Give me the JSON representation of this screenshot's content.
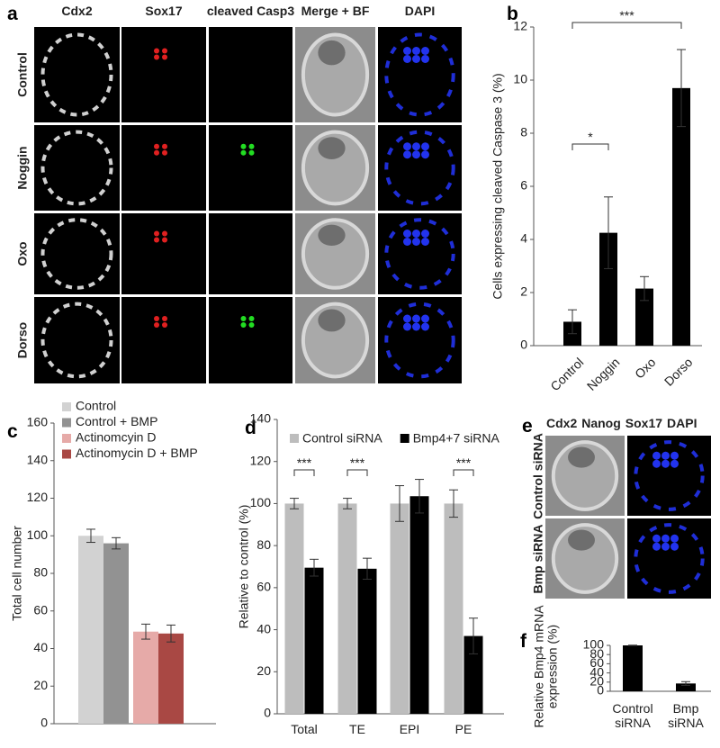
{
  "panel_labels": [
    "a",
    "b",
    "c",
    "d",
    "e",
    "f"
  ],
  "panel_a": {
    "channels": [
      "Cdx2",
      "Sox17",
      "cleaved Casp3",
      "Merge + BF",
      "DAPI"
    ],
    "channel_colors": [
      "#9a9a9a",
      "#e02020",
      "#22b022",
      "#111111",
      "#2233dd"
    ],
    "rows": [
      "Control",
      "Noggin",
      "Oxo",
      "Dorso"
    ]
  },
  "panel_e": {
    "channels": [
      "Cdx2",
      "Nanog",
      "Sox17",
      "DAPI"
    ],
    "channel_colors": [
      "#8a8a8a",
      "#22a022",
      "#e02020",
      "#2233dd"
    ],
    "rows": [
      "Control siRNA",
      "Bmp siRNA"
    ]
  },
  "chart_data": [
    {
      "type": "bar",
      "ylabel": "Cells expressing cleaved Caspase 3 (%)",
      "categories": [
        "Control",
        "Noggin",
        "Oxo",
        "Dorso"
      ],
      "values": [
        0.9,
        4.25,
        2.15,
        9.7
      ],
      "errors": [
        0.45,
        1.35,
        0.45,
        1.45
      ],
      "color": "#000000",
      "ylim": [
        0,
        12
      ],
      "yticks": [
        0,
        2,
        4,
        6,
        8,
        10,
        12
      ],
      "annotations": [
        {
          "text": "*",
          "between": [
            "Control",
            "Noggin"
          ]
        },
        {
          "text": "***",
          "between": [
            "Control",
            "Dorso"
          ]
        }
      ]
    },
    {
      "type": "bar",
      "ylabel": "Total cell number",
      "series": [
        {
          "name": "Control",
          "color": "#d2d2d2",
          "values": [
            100
          ],
          "errors": [
            3.5
          ]
        },
        {
          "name": "Control + BMP",
          "color": "#929292",
          "values": [
            96
          ],
          "errors": [
            3
          ]
        },
        {
          "name": "Actinomcyin D",
          "color": "#e6aaa8",
          "values": [
            49
          ],
          "errors": [
            4
          ]
        },
        {
          "name": "Actinomycin D + BMP",
          "color": "#a94844",
          "values": [
            48
          ],
          "errors": [
            4.5
          ]
        }
      ],
      "ylim": [
        0,
        160
      ],
      "yticks": [
        0,
        20,
        40,
        60,
        80,
        100,
        120,
        140,
        160
      ],
      "legend": "upper left"
    },
    {
      "type": "bar",
      "ylabel": "Relative to control (%)",
      "categories": [
        "Total",
        "TE",
        "EPI",
        "PE"
      ],
      "series": [
        {
          "name": "Control siRNA",
          "color": "#bdbdbd",
          "values": [
            100,
            100,
            100,
            100
          ],
          "errors": [
            2.5,
            2.5,
            8.5,
            6.5
          ]
        },
        {
          "name": "Bmp4+7 siRNA",
          "color": "#000000",
          "values": [
            69.5,
            69,
            103.5,
            37
          ],
          "errors": [
            4,
            5,
            8,
            8.5
          ]
        }
      ],
      "ylim": [
        0,
        140
      ],
      "yticks": [
        0,
        20,
        40,
        60,
        80,
        100,
        120,
        140
      ],
      "legend": "upper center",
      "annotations": [
        {
          "text": "***",
          "category": "Total"
        },
        {
          "text": "***",
          "category": "TE"
        },
        {
          "text": "***",
          "category": "PE"
        }
      ]
    },
    {
      "type": "bar",
      "ylabel": [
        "Relative Bmp4 mRNA",
        "expression (%)"
      ],
      "categories": [
        "Control siRNA",
        "Bmp siRNA"
      ],
      "values": [
        100,
        17
      ],
      "errors": [
        0.5,
        4
      ],
      "color": "#000000",
      "ylim": [
        0,
        100
      ],
      "yticks": [
        0,
        20,
        40,
        60,
        80,
        100
      ]
    }
  ]
}
